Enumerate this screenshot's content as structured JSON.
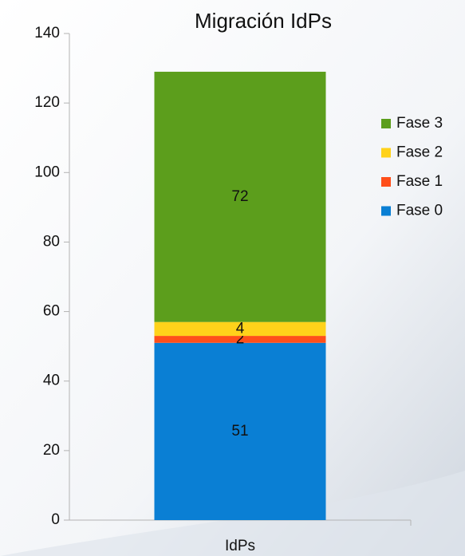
{
  "chart_data": {
    "type": "bar",
    "stacked": true,
    "title": "Migración IdPs",
    "categories": [
      "IdPs"
    ],
    "series": [
      {
        "name": "Fase 0",
        "color": "#0a7fd4",
        "values": [
          51
        ]
      },
      {
        "name": "Fase 1",
        "color": "#ff4f1a",
        "values": [
          2
        ]
      },
      {
        "name": "Fase 2",
        "color": "#ffd21a",
        "values": [
          4
        ]
      },
      {
        "name": "Fase 3",
        "color": "#5c9e1c",
        "values": [
          72
        ]
      }
    ],
    "ylim": [
      0,
      140
    ],
    "yticks": [
      0,
      20,
      40,
      60,
      80,
      100,
      120,
      140
    ],
    "grid": false,
    "legend": "right"
  }
}
